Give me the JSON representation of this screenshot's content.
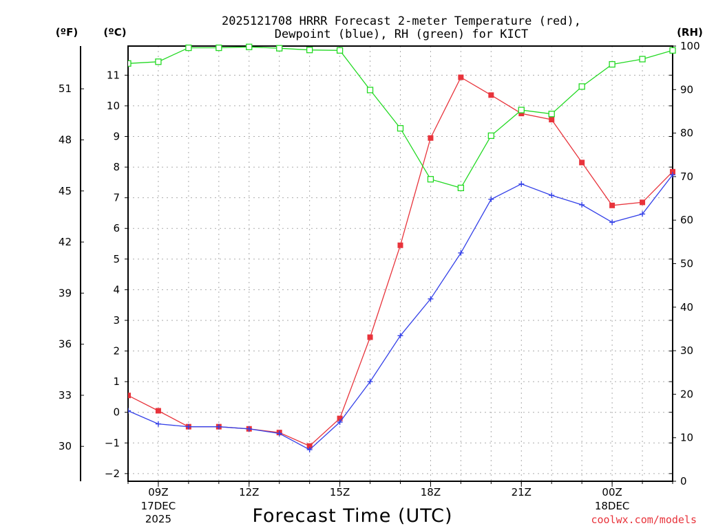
{
  "chart_data": {
    "type": "line",
    "title_line1": "2025121708 HRRR Forecast 2-meter Temperature (red),",
    "title_line2": "Dewpoint (blue), RH (green) for KICT",
    "xlabel": "Forecast Time (UTC)",
    "credit": "coolwx.com/models",
    "unit_f": "(ºF)",
    "unit_c": "(ºC)",
    "unit_rh": "(RH)",
    "x_hours": [
      8,
      9,
      10,
      11,
      12,
      13,
      14,
      15,
      16,
      17,
      18,
      19,
      20,
      21,
      22,
      23,
      24,
      25,
      26
    ],
    "xlim": [
      8,
      26
    ],
    "x_ticks": [
      {
        "x": 9,
        "label": "09Z",
        "date": "17DEC",
        "year": "2025"
      },
      {
        "x": 12,
        "label": "12Z",
        "date": "",
        "year": ""
      },
      {
        "x": 15,
        "label": "15Z",
        "date": "",
        "year": ""
      },
      {
        "x": 18,
        "label": "18Z",
        "date": "",
        "year": ""
      },
      {
        "x": 21,
        "label": "21Z",
        "date": "",
        "year": ""
      },
      {
        "x": 24,
        "label": "00Z",
        "date": "18DEC",
        "year": ""
      }
    ],
    "ylim_c": [
      -2.25,
      11.95
    ],
    "y_ticks_c": [
      "-2",
      "-1",
      "0",
      "1",
      "2",
      "3",
      "4",
      "5",
      "6",
      "7",
      "8",
      "9",
      "10",
      "11"
    ],
    "y_ticks_f": [
      "30",
      "33",
      "36",
      "39",
      "42",
      "45",
      "48",
      "51"
    ],
    "ylim_rh": [
      0,
      100
    ],
    "y_ticks_rh": [
      "0",
      "10",
      "20",
      "30",
      "40",
      "50",
      "60",
      "70",
      "80",
      "90",
      "100"
    ],
    "series": [
      {
        "name": "Temperature",
        "axis": "C",
        "color": "#e8333b",
        "marker": "filled-square",
        "values": [
          0.55,
          0.05,
          -0.47,
          -0.47,
          -0.54,
          -0.66,
          -1.1,
          -0.2,
          2.45,
          5.45,
          8.95,
          10.93,
          10.35,
          9.75,
          9.55,
          8.15,
          6.75,
          6.85,
          7.85
        ]
      },
      {
        "name": "Dewpoint",
        "axis": "C",
        "color": "#3340e8",
        "marker": "plus",
        "values": [
          0.05,
          -0.38,
          -0.47,
          -0.47,
          -0.54,
          -0.69,
          -1.22,
          -0.32,
          1.0,
          2.5,
          3.7,
          5.2,
          6.95,
          7.45,
          7.08,
          6.77,
          6.2,
          6.47,
          7.75
        ]
      },
      {
        "name": "RH",
        "axis": "RH",
        "color": "#22d922",
        "marker": "open-square",
        "values": [
          96,
          96.4,
          99.6,
          99.6,
          99.8,
          99.5,
          99.1,
          99.0,
          89.9,
          81.1,
          69.4,
          67.4,
          79.4,
          85.3,
          84.4,
          90.7,
          95.8,
          97.0,
          99.0
        ]
      }
    ]
  }
}
